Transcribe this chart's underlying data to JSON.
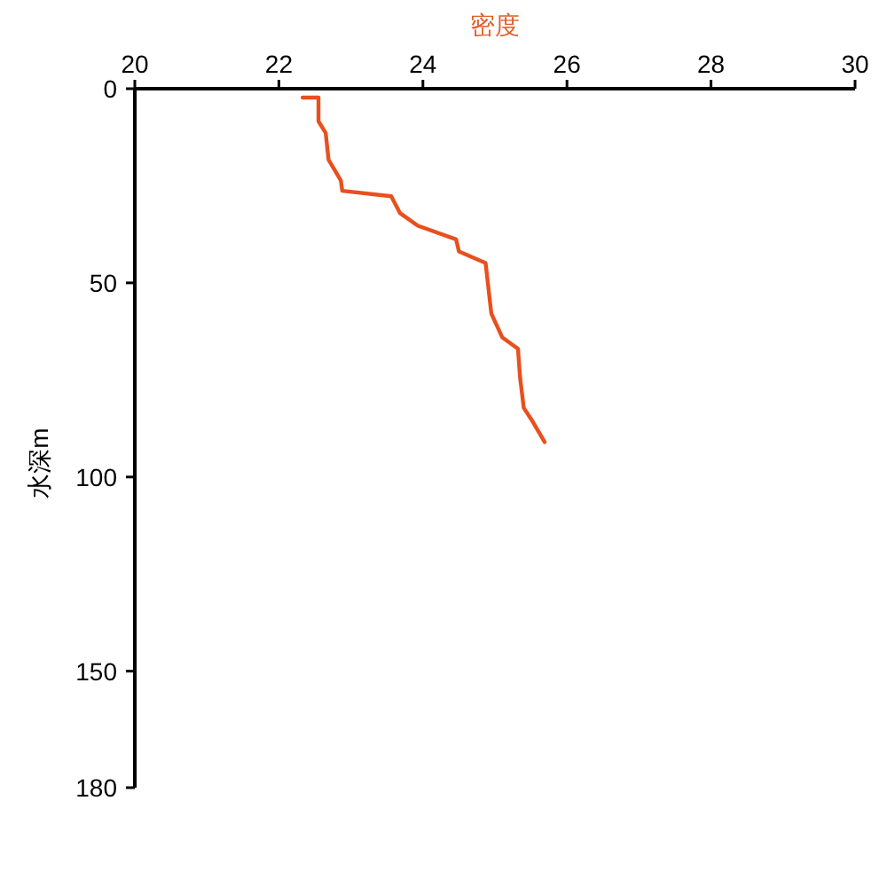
{
  "chart_data": {
    "type": "line",
    "xlabel": "密度",
    "ylabel": "水深m",
    "xlim": [
      20,
      30
    ],
    "xticks": [
      20,
      22,
      24,
      26,
      28,
      30
    ],
    "ylim": [
      180,
      0
    ],
    "yticks": [
      0,
      50,
      100,
      150,
      180
    ],
    "grid": false,
    "marker": "none",
    "line_style": "solid",
    "series": [
      {
        "color": "#e8501e",
        "x": [
          22.33,
          22.55,
          22.55,
          22.65,
          22.69,
          22.86,
          22.88,
          23.56,
          23.68,
          23.93,
          24.46,
          24.5,
          24.87,
          24.95,
          25.1,
          25.32,
          25.35,
          25.4,
          25.51,
          25.69
        ],
        "values": [
          2.3,
          2.3,
          8.4,
          11.4,
          18.3,
          23.6,
          26.3,
          27.7,
          32,
          35.3,
          38.8,
          41.9,
          44.9,
          57.9,
          64,
          67,
          74.6,
          82.2,
          85.3,
          91
        ]
      }
    ]
  }
}
